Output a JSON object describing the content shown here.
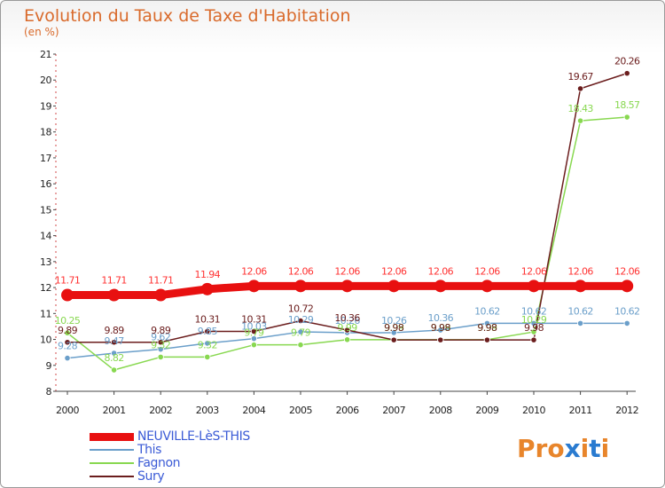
{
  "title": "Evolution du Taux de Taxe d'Habitation",
  "subtitle": "(en %)",
  "logo_text": "Proxiti",
  "logo_colors": [
    "#e8852b",
    "#e8852b",
    "#e8852b",
    "#2a7bd0",
    "#e8852b",
    "#2a7bd0",
    "#e8852b"
  ],
  "chart_data": {
    "type": "line",
    "x": [
      "2000",
      "2001",
      "2002",
      "2003",
      "2004",
      "2005",
      "2006",
      "2007",
      "2008",
      "2009",
      "2010",
      "2011",
      "2012"
    ],
    "ylim": [
      8,
      21
    ],
    "yticks": [
      "8",
      "9",
      "10",
      "11",
      "12",
      "13",
      "14",
      "15",
      "16",
      "17",
      "18",
      "19",
      "20",
      "21"
    ],
    "grid": false,
    "legend_position": "bottom-left",
    "series": [
      {
        "name": "NEUVILLE-LèS-THIS",
        "color": "#e81010",
        "label_color": "#ff3333",
        "values": [
          11.71,
          11.71,
          11.71,
          11.94,
          12.06,
          12.06,
          12.06,
          12.06,
          12.06,
          12.06,
          12.06,
          12.06,
          12.06
        ],
        "labels": [
          "11.71",
          "11.71",
          "11.71",
          "11.94",
          "12.06",
          "12.06",
          "12.06",
          "12.06",
          "12.06",
          "12.06",
          "12.06",
          "12.06",
          "12.06"
        ]
      },
      {
        "name": "This",
        "color": "#6b9fca",
        "label_color": "#6b9fca",
        "values": [
          9.28,
          9.47,
          9.62,
          9.85,
          10.03,
          10.29,
          10.26,
          10.26,
          10.36,
          10.62,
          10.62,
          10.62,
          10.62
        ],
        "labels": [
          "9.28",
          "9.47",
          "9.62",
          "9.85",
          "10.03",
          "10.29",
          "10.26",
          "10.26",
          "10.36",
          "10.62",
          "10.62",
          "10.62",
          "10.62"
        ]
      },
      {
        "name": "Fagnon",
        "color": "#88d850",
        "label_color": "#88d850",
        "values": [
          10.25,
          8.82,
          9.32,
          9.32,
          9.79,
          9.79,
          9.99,
          9.99,
          9.99,
          9.99,
          10.29,
          18.43,
          18.57
        ],
        "labels": [
          "10.25",
          "8.82",
          "9.32",
          "9.32",
          "9.79",
          "9.79",
          "9.99",
          "9.99",
          "9.99",
          "9.99",
          "10.29",
          "18.43",
          "18.57"
        ]
      },
      {
        "name": "Sury",
        "color": "#6b1d1d",
        "label_color": "#6b1d1d",
        "values": [
          9.89,
          9.89,
          9.89,
          10.31,
          10.31,
          10.72,
          10.36,
          9.98,
          9.98,
          9.98,
          9.98,
          19.67,
          20.26
        ],
        "labels": [
          "9.89",
          "9.89",
          "9.89",
          "10.31",
          "10.31",
          "10.72",
          "10.36",
          "9.98",
          "9.98",
          "9.98",
          "9.98",
          "19.67",
          "20.26"
        ]
      }
    ]
  }
}
